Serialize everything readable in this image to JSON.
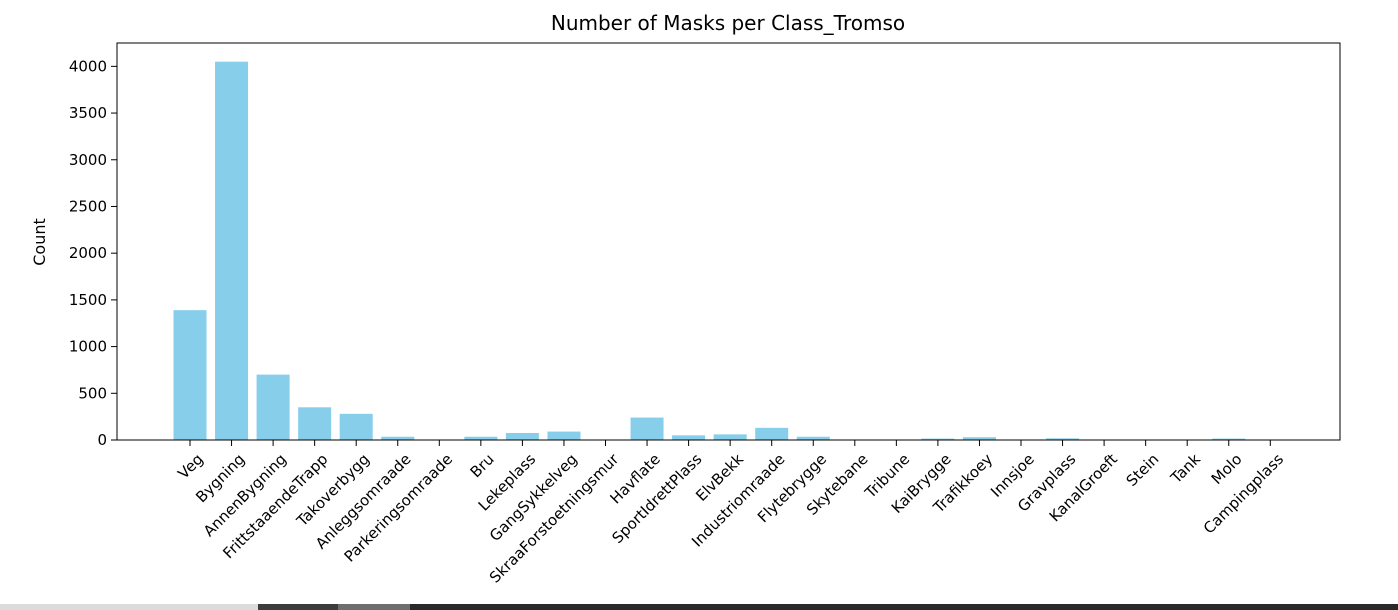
{
  "chart_data": {
    "type": "bar",
    "title": "Number of Masks per Class_Tromso",
    "xlabel": "",
    "ylabel": "Count",
    "ylim": [
      0,
      4250
    ],
    "yticks": [
      0,
      500,
      1000,
      1500,
      2000,
      2500,
      3000,
      3500,
      4000
    ],
    "grid": false,
    "bar_color": "#87ceeb",
    "categories": [
      "Veg",
      "Bygning",
      "AnnenBygning",
      "FrittstaaendeTrapp",
      "Takoverbygg",
      "Anleggsomraade",
      "Parkeringsomraade",
      "Bru",
      "Lekeplass",
      "GangSykkelveg",
      "SkraaForstoetningsmur",
      "Havflate",
      "SportIdrettPlass",
      "ElvBekk",
      "Industriomraade",
      "Flytebrygge",
      "Skytebane",
      "Tribune",
      "KaiBrygge",
      "Trafikkoey",
      "Innsjoe",
      "Gravplass",
      "KanalGroeft",
      "Stein",
      "Tank",
      "Molo",
      "Campingplass"
    ],
    "values": [
      1390,
      4050,
      700,
      350,
      280,
      35,
      5,
      35,
      75,
      90,
      3,
      240,
      50,
      60,
      130,
      35,
      3,
      3,
      15,
      30,
      3,
      18,
      3,
      3,
      3,
      15,
      3
    ]
  }
}
